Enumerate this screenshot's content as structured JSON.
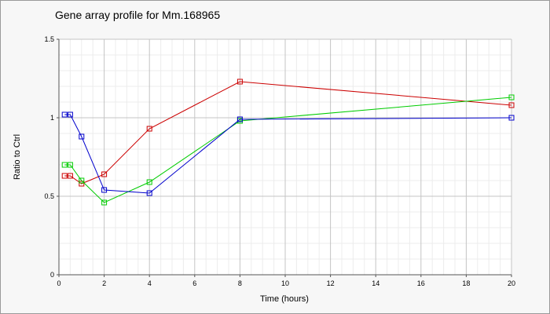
{
  "chart_data": {
    "type": "line",
    "title": "Gene array profile for Mm.168965",
    "xlabel": "Time (hours)",
    "ylabel": "Ratio to Ctrl",
    "xlim": [
      0,
      20
    ],
    "ylim": [
      0,
      1.5
    ],
    "xticks": [
      0,
      2,
      4,
      6,
      8,
      10,
      12,
      14,
      16,
      18,
      20
    ],
    "yticks": [
      0,
      0.5,
      1,
      1.5
    ],
    "ytick_labels": [
      "0",
      "0.5",
      "1",
      "1.5"
    ],
    "grid": true,
    "legend": "none",
    "marker": "square",
    "series": [
      {
        "color": "#cc0000",
        "x": [
          0.25,
          0.5,
          1,
          2,
          4,
          8,
          20
        ],
        "y": [
          0.63,
          0.63,
          0.58,
          0.64,
          0.93,
          1.23,
          1.08
        ]
      },
      {
        "color": "#00cc00",
        "x": [
          0.25,
          0.5,
          1,
          2,
          4,
          8,
          20
        ],
        "y": [
          0.7,
          0.7,
          0.6,
          0.46,
          0.59,
          0.98,
          1.13
        ]
      },
      {
        "color": "#0000cc",
        "x": [
          0.25,
          0.5,
          1,
          2,
          4,
          8,
          20
        ],
        "y": [
          1.02,
          1.02,
          0.88,
          0.54,
          0.52,
          0.99,
          1.0
        ]
      }
    ]
  }
}
